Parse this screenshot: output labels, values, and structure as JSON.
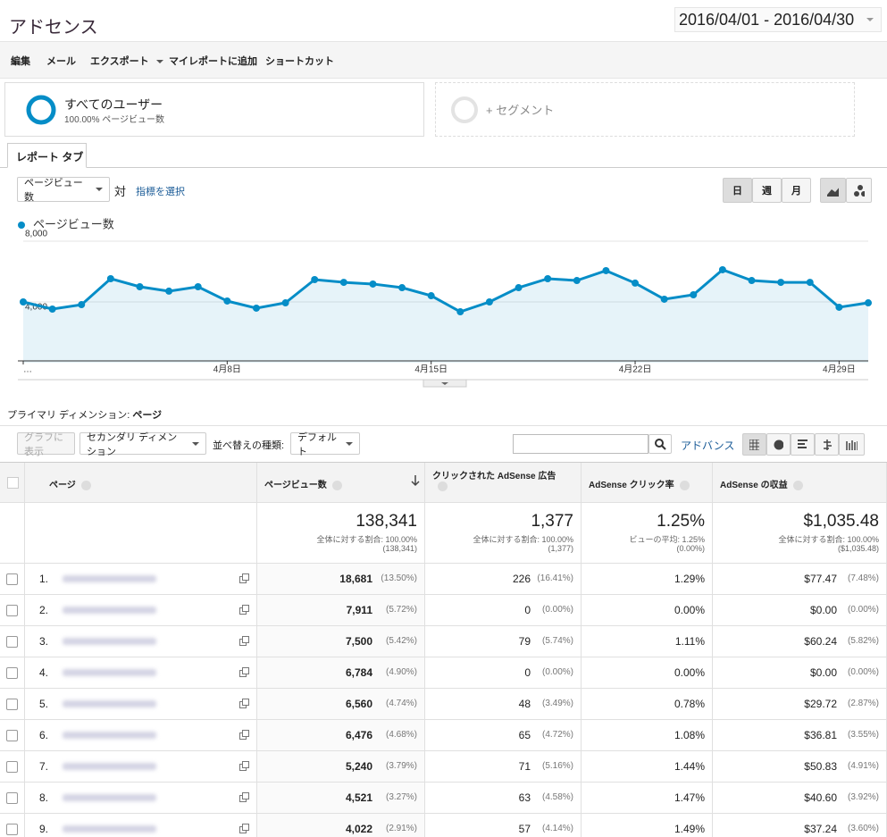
{
  "header": {
    "title": "アドセンス",
    "date_range": "2016/04/01 - 2016/04/30"
  },
  "toolbar": [
    "編集",
    "メール",
    "エクスポート",
    "マイレポートに追加",
    "ショートカット"
  ],
  "segments": {
    "active": {
      "name": "すべてのユーザー",
      "detail": "100.00% ページビュー数"
    },
    "add": "+ セグメント"
  },
  "tab": "レポート タブ",
  "controls": {
    "metric": "ページビュー数",
    "versus": "対",
    "select_metric": "指標を選択",
    "periods": [
      "日",
      "週",
      "月"
    ]
  },
  "chart_data": {
    "type": "line",
    "area": true,
    "categories": [
      "…",
      null,
      null,
      null,
      null,
      null,
      null,
      "4月8日",
      null,
      null,
      null,
      null,
      null,
      null,
      "4月15日",
      null,
      null,
      null,
      null,
      null,
      null,
      "4月22日",
      null,
      null,
      null,
      null,
      null,
      null,
      "4月29日",
      null
    ],
    "series": [
      {
        "name": "ページビュー数",
        "color": "#058dc7",
        "values": [
          4000,
          3530,
          3820,
          5530,
          5000,
          4710,
          5000,
          4060,
          3590,
          3940,
          5470,
          5290,
          5180,
          4940,
          4410,
          3350,
          4000,
          4940,
          5530,
          5410,
          6060,
          5240,
          4180,
          4470,
          6120,
          5410,
          5290,
          5290,
          3650,
          3940
        ]
      }
    ],
    "ylim": [
      0,
      8000
    ],
    "yticks": [
      {
        "value": 4000,
        "label": "4,000"
      },
      {
        "value": 8000,
        "label": "8,000"
      }
    ],
    "grid": true
  },
  "dimension": {
    "label": "プライマリ ディメンション:",
    "value": "ページ"
  },
  "table_toolbar": {
    "plot": "グラフに表示",
    "secondary": "セカンダリ ディメンション",
    "sort_label": "並べ替えの種類:",
    "sort": "デフォルト",
    "advanced": "アドバンス"
  },
  "table": {
    "headers": [
      "ページ",
      "ページビュー数",
      "クリックされた AdSense 広告",
      "AdSense クリック率",
      "AdSense の収益"
    ],
    "totals": [
      [
        "138,341",
        "全体に対する割合: 100.00%",
        "(138,341)"
      ],
      [
        "1,377",
        "全体に対する割合: 100.00%",
        "(1,377)"
      ],
      [
        "1.25%",
        "ビューの平均: 1.25%",
        "(0.00%)"
      ],
      [
        "$1,035.48",
        "全体に対する割合: 100.00%",
        "($1,035.48)"
      ]
    ],
    "rows": [
      [
        "1.",
        "18,681",
        "(13.50%)",
        "226",
        "(16.41%)",
        "1.29%",
        "$77.47",
        "(7.48%)"
      ],
      [
        "2.",
        "7,911",
        "(5.72%)",
        "0",
        "(0.00%)",
        "0.00%",
        "$0.00",
        "(0.00%)"
      ],
      [
        "3.",
        "7,500",
        "(5.42%)",
        "79",
        "(5.74%)",
        "1.11%",
        "$60.24",
        "(5.82%)"
      ],
      [
        "4.",
        "6,784",
        "(4.90%)",
        "0",
        "(0.00%)",
        "0.00%",
        "$0.00",
        "(0.00%)"
      ],
      [
        "5.",
        "6,560",
        "(4.74%)",
        "48",
        "(3.49%)",
        "0.78%",
        "$29.72",
        "(2.87%)"
      ],
      [
        "6.",
        "6,476",
        "(4.68%)",
        "65",
        "(4.72%)",
        "1.08%",
        "$36.81",
        "(3.55%)"
      ],
      [
        "7.",
        "5,240",
        "(3.79%)",
        "71",
        "(5.16%)",
        "1.44%",
        "$50.83",
        "(4.91%)"
      ],
      [
        "8.",
        "4,521",
        "(3.27%)",
        "63",
        "(4.58%)",
        "1.47%",
        "$40.60",
        "(3.92%)"
      ],
      [
        "9.",
        "4,022",
        "(2.91%)",
        "57",
        "(4.14%)",
        "1.49%",
        "$37.24",
        "(3.60%)"
      ]
    ]
  }
}
